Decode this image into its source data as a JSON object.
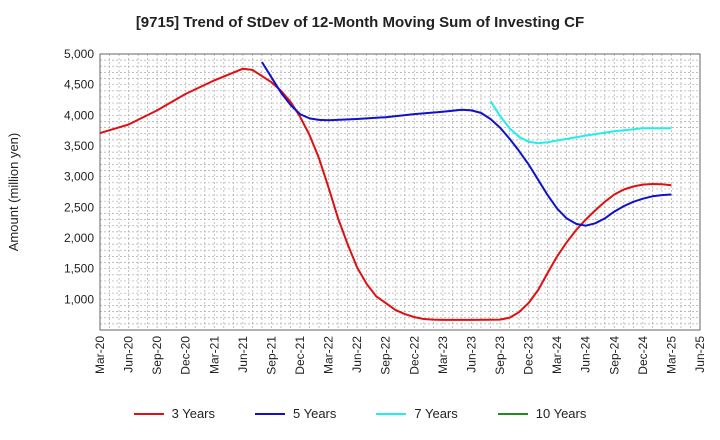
{
  "chart_data": {
    "type": "line",
    "title": "[9715]  Trend of StDev of 12-Month Moving Sum of Investing CF",
    "ylabel": "Amount (million yen)",
    "xlabel": "",
    "ylim": [
      500,
      5000
    ],
    "yticks": [
      1000,
      1500,
      2000,
      2500,
      3000,
      3500,
      4000,
      4500,
      5000
    ],
    "ytick_labels": [
      "1,000",
      "1,500",
      "2,000",
      "2,500",
      "3,000",
      "3,500",
      "4,000",
      "4,500",
      "5,000"
    ],
    "x_ticks": [
      "Mar-20",
      "Jun-20",
      "Sep-20",
      "Dec-20",
      "Mar-21",
      "Jun-21",
      "Sep-21",
      "Dec-21",
      "Mar-22",
      "Jun-22",
      "Sep-22",
      "Dec-22",
      "Mar-23",
      "Jun-23",
      "Sep-23",
      "Dec-23",
      "Mar-24",
      "Jun-24",
      "Sep-24",
      "Dec-24",
      "Mar-25",
      "Jun-25"
    ],
    "grid": true,
    "legend_position": "bottom",
    "series": [
      {
        "name": "3 Years",
        "color": "#dd1111",
        "points": [
          [
            "Mar-20",
            3710
          ],
          [
            "Jun-20",
            3850
          ],
          [
            "Sep-20",
            4080
          ],
          [
            "Dec-20",
            4350
          ],
          [
            "Mar-21",
            4570
          ],
          [
            "Jun-21",
            4760
          ],
          [
            "Jul-21",
            4740
          ],
          [
            "Sep-21",
            4540
          ],
          [
            "Oct-21",
            4400
          ],
          [
            "Nov-21",
            4220
          ],
          [
            "Dec-21",
            3980
          ],
          [
            "Jan-22",
            3680
          ],
          [
            "Feb-22",
            3300
          ],
          [
            "Mar-22",
            2820
          ],
          [
            "Apr-22",
            2320
          ],
          [
            "May-22",
            1900
          ],
          [
            "Jun-22",
            1520
          ],
          [
            "Jul-22",
            1250
          ],
          [
            "Aug-22",
            1050
          ],
          [
            "Sep-22",
            940
          ],
          [
            "Oct-22",
            830
          ],
          [
            "Nov-22",
            760
          ],
          [
            "Dec-22",
            710
          ],
          [
            "Jan-23",
            680
          ],
          [
            "Feb-23",
            670
          ],
          [
            "Mar-23",
            665
          ],
          [
            "Jun-23",
            665
          ],
          [
            "Sep-23",
            670
          ],
          [
            "Oct-23",
            700
          ],
          [
            "Nov-23",
            790
          ],
          [
            "Dec-23",
            940
          ],
          [
            "Jan-24",
            1150
          ],
          [
            "Feb-24",
            1430
          ],
          [
            "Mar-24",
            1700
          ],
          [
            "Apr-24",
            1930
          ],
          [
            "May-24",
            2130
          ],
          [
            "Jun-24",
            2300
          ],
          [
            "Jul-24",
            2450
          ],
          [
            "Aug-24",
            2590
          ],
          [
            "Sep-24",
            2710
          ],
          [
            "Oct-24",
            2790
          ],
          [
            "Nov-24",
            2840
          ],
          [
            "Dec-24",
            2870
          ],
          [
            "Jan-25",
            2880
          ],
          [
            "Feb-25",
            2875
          ],
          [
            "Mar-25",
            2860
          ]
        ]
      },
      {
        "name": "5 Years",
        "color": "#1111cc",
        "points": [
          [
            "Aug-21",
            4870
          ],
          [
            "Sep-21",
            4620
          ],
          [
            "Oct-21",
            4370
          ],
          [
            "Nov-21",
            4170
          ],
          [
            "Dec-21",
            4020
          ],
          [
            "Jan-22",
            3950
          ],
          [
            "Feb-22",
            3925
          ],
          [
            "Mar-22",
            3920
          ],
          [
            "Jun-22",
            3940
          ],
          [
            "Sep-22",
            3970
          ],
          [
            "Dec-22",
            4020
          ],
          [
            "Mar-23",
            4060
          ],
          [
            "May-23",
            4090
          ],
          [
            "Jun-23",
            4080
          ],
          [
            "Jul-23",
            4040
          ],
          [
            "Aug-23",
            3940
          ],
          [
            "Sep-23",
            3800
          ],
          [
            "Oct-23",
            3620
          ],
          [
            "Nov-23",
            3420
          ],
          [
            "Dec-23",
            3200
          ],
          [
            "Jan-24",
            2950
          ],
          [
            "Feb-24",
            2700
          ],
          [
            "Mar-24",
            2480
          ],
          [
            "Apr-24",
            2320
          ],
          [
            "May-24",
            2230
          ],
          [
            "Jun-24",
            2200
          ],
          [
            "Jul-24",
            2240
          ],
          [
            "Aug-24",
            2320
          ],
          [
            "Sep-24",
            2430
          ],
          [
            "Oct-24",
            2520
          ],
          [
            "Nov-24",
            2590
          ],
          [
            "Dec-24",
            2640
          ],
          [
            "Jan-25",
            2680
          ],
          [
            "Feb-25",
            2700
          ],
          [
            "Mar-25",
            2710
          ]
        ]
      },
      {
        "name": "7 Years",
        "color": "#22eeee",
        "points": [
          [
            "Aug-23",
            4230
          ],
          [
            "Sep-23",
            3990
          ],
          [
            "Oct-23",
            3790
          ],
          [
            "Nov-23",
            3650
          ],
          [
            "Dec-23",
            3570
          ],
          [
            "Jan-24",
            3545
          ],
          [
            "Feb-24",
            3560
          ],
          [
            "Mar-24",
            3590
          ],
          [
            "Jun-24",
            3670
          ],
          [
            "Sep-24",
            3740
          ],
          [
            "Dec-24",
            3790
          ],
          [
            "Mar-25",
            3790
          ]
        ]
      },
      {
        "name": "10 Years",
        "color": "#228822",
        "points": []
      }
    ]
  }
}
